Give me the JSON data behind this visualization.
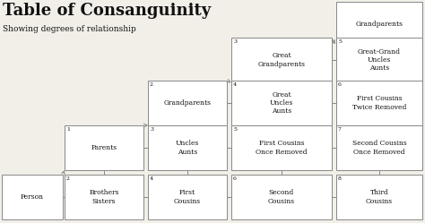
{
  "title": "Table of Consanguinity",
  "subtitle": "Showing degrees of relationship",
  "background_color": "#f2efe9",
  "box_color": "#ffffff",
  "box_edge_color": "#888888",
  "text_color": "#111111",
  "line_color": "#888888",
  "boxes": [
    {
      "label": "Person",
      "degree": null,
      "col": 0,
      "row": 4
    },
    {
      "label": "Parents",
      "degree": "1",
      "col": 1,
      "row": 3
    },
    {
      "label": "Brothers\nSisters",
      "degree": "2",
      "col": 1,
      "row": 4
    },
    {
      "label": "Grandparents",
      "degree": "2",
      "col": 2,
      "row": 2
    },
    {
      "label": "Uncles\nAunts",
      "degree": "3",
      "col": 2,
      "row": 3
    },
    {
      "label": "First\nCousins",
      "degree": "4",
      "col": 2,
      "row": 4
    },
    {
      "label": "Great\nGrandparents",
      "degree": "3",
      "col": 3,
      "row": 1
    },
    {
      "label": "Great\nUncles\nAunts",
      "degree": "4",
      "col": 3,
      "row": 2
    },
    {
      "label": "First Cousins\nOnce Removed",
      "degree": "5",
      "col": 3,
      "row": 3
    },
    {
      "label": "Second\nCousins",
      "degree": "6",
      "col": 3,
      "row": 4
    },
    {
      "label": "Grandparents",
      "degree": null,
      "col": 4,
      "row": 0
    },
    {
      "label": "Great-Grand\nUncles\nAunts",
      "degree": "5",
      "col": 4,
      "row": 1
    },
    {
      "label": "First Cousins\nTwice Removed",
      "degree": "6",
      "col": 4,
      "row": 2
    },
    {
      "label": "Second Cousins\nOnce Removed",
      "degree": "7",
      "col": 4,
      "row": 3
    },
    {
      "label": "Third\nCousins",
      "degree": "8",
      "col": 4,
      "row": 4
    }
  ],
  "title_fontsize": 13,
  "subtitle_fontsize": 6.5,
  "label_fontsize": 5.5,
  "degree_fontsize": 4.5
}
